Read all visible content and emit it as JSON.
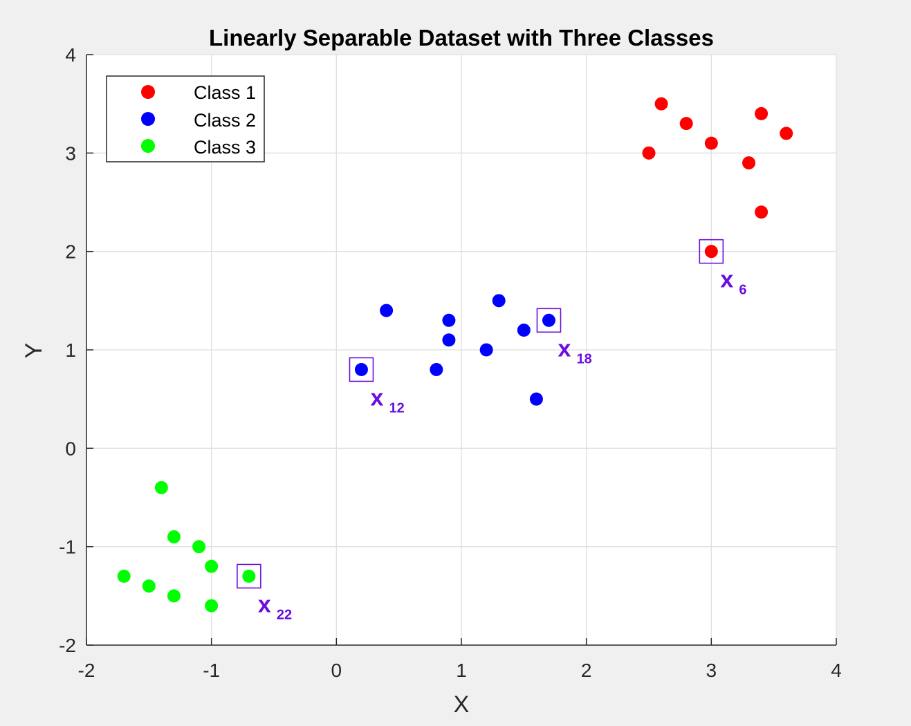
{
  "chart_data": {
    "type": "scatter",
    "title": "Linearly Separable Dataset with Three Classes",
    "xlabel": "X",
    "ylabel": "Y",
    "xlim": [
      -2,
      4
    ],
    "ylim": [
      -2,
      4
    ],
    "xticks": [
      -2,
      -1,
      0,
      1,
      2,
      3,
      4
    ],
    "yticks": [
      -2,
      -1,
      0,
      1,
      2,
      3,
      4
    ],
    "grid": true,
    "legend_position": "top-left",
    "series": [
      {
        "name": "Class 1",
        "color": "#ff0000",
        "points": [
          [
            2.5,
            3.0
          ],
          [
            2.6,
            3.5
          ],
          [
            2.8,
            3.3
          ],
          [
            3.0,
            3.1
          ],
          [
            3.3,
            2.9
          ],
          [
            3.4,
            3.4
          ],
          [
            3.6,
            3.2
          ],
          [
            3.4,
            2.4
          ],
          [
            3.0,
            2.0
          ]
        ]
      },
      {
        "name": "Class 2",
        "color": "#0000ff",
        "points": [
          [
            0.4,
            1.4
          ],
          [
            0.9,
            1.3
          ],
          [
            0.9,
            1.1
          ],
          [
            1.3,
            1.5
          ],
          [
            1.5,
            1.2
          ],
          [
            1.2,
            1.0
          ],
          [
            0.8,
            0.8
          ],
          [
            1.6,
            0.5
          ],
          [
            1.7,
            1.3
          ],
          [
            0.2,
            0.8
          ]
        ]
      },
      {
        "name": "Class 3",
        "color": "#00ff00",
        "points": [
          [
            -1.4,
            -0.4
          ],
          [
            -1.3,
            -0.9
          ],
          [
            -1.1,
            -1.0
          ],
          [
            -1.0,
            -1.2
          ],
          [
            -1.7,
            -1.3
          ],
          [
            -1.5,
            -1.4
          ],
          [
            -1.3,
            -1.5
          ],
          [
            -1.0,
            -1.6
          ],
          [
            -0.7,
            -1.3
          ]
        ]
      }
    ],
    "highlights": [
      {
        "x": 3.0,
        "y": 2.0,
        "label": "x",
        "subscript": "6"
      },
      {
        "x": 1.7,
        "y": 1.3,
        "label": "x",
        "subscript": "18"
      },
      {
        "x": 0.2,
        "y": 0.8,
        "label": "x",
        "subscript": "12"
      },
      {
        "x": -0.7,
        "y": -1.3,
        "label": "x",
        "subscript": "22"
      }
    ],
    "highlight_color": "#6a0dde"
  }
}
